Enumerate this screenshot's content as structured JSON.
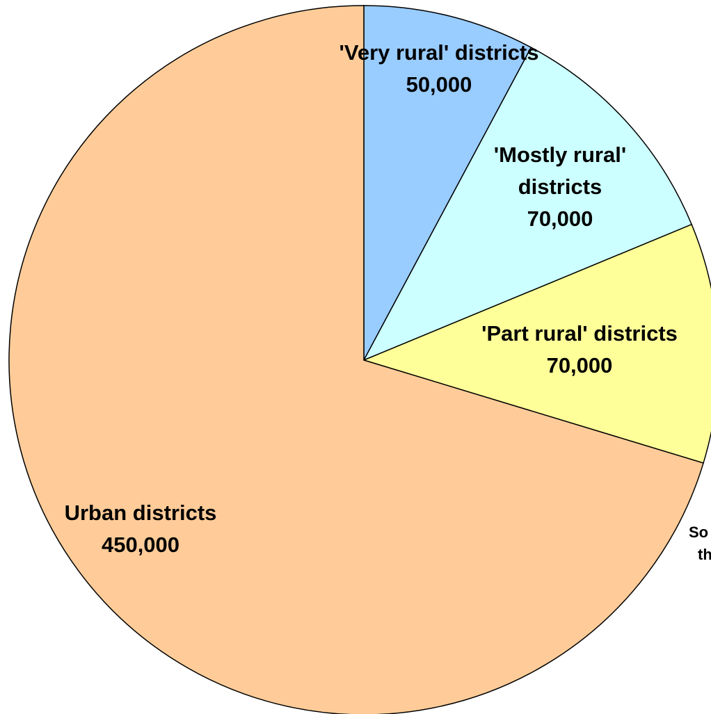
{
  "chart_data": {
    "type": "pie",
    "title": "",
    "start": "12 o'clock",
    "direction": "clockwise",
    "slices": [
      {
        "name": "'Very rural' districts",
        "label_lines": [
          "'Very rural' districts",
          "50,000"
        ],
        "value": 50000,
        "color": "#99ccff"
      },
      {
        "name": "'Mostly rural' districts",
        "label_lines": [
          "'Mostly rural'",
          "districts",
          "70,000"
        ],
        "value": 70000,
        "color": "#ccffff"
      },
      {
        "name": "'Part rural' districts",
        "label_lines": [
          "'Part rural' districts",
          "70,000"
        ],
        "value": 70000,
        "color": "#ffff99"
      },
      {
        "name": "Urban districts",
        "label_lines": [
          "Urban districts",
          "450,000"
        ],
        "value": 450000,
        "color": "#ffcc99"
      }
    ],
    "footnote_lines": [
      "So",
      "th"
    ]
  }
}
